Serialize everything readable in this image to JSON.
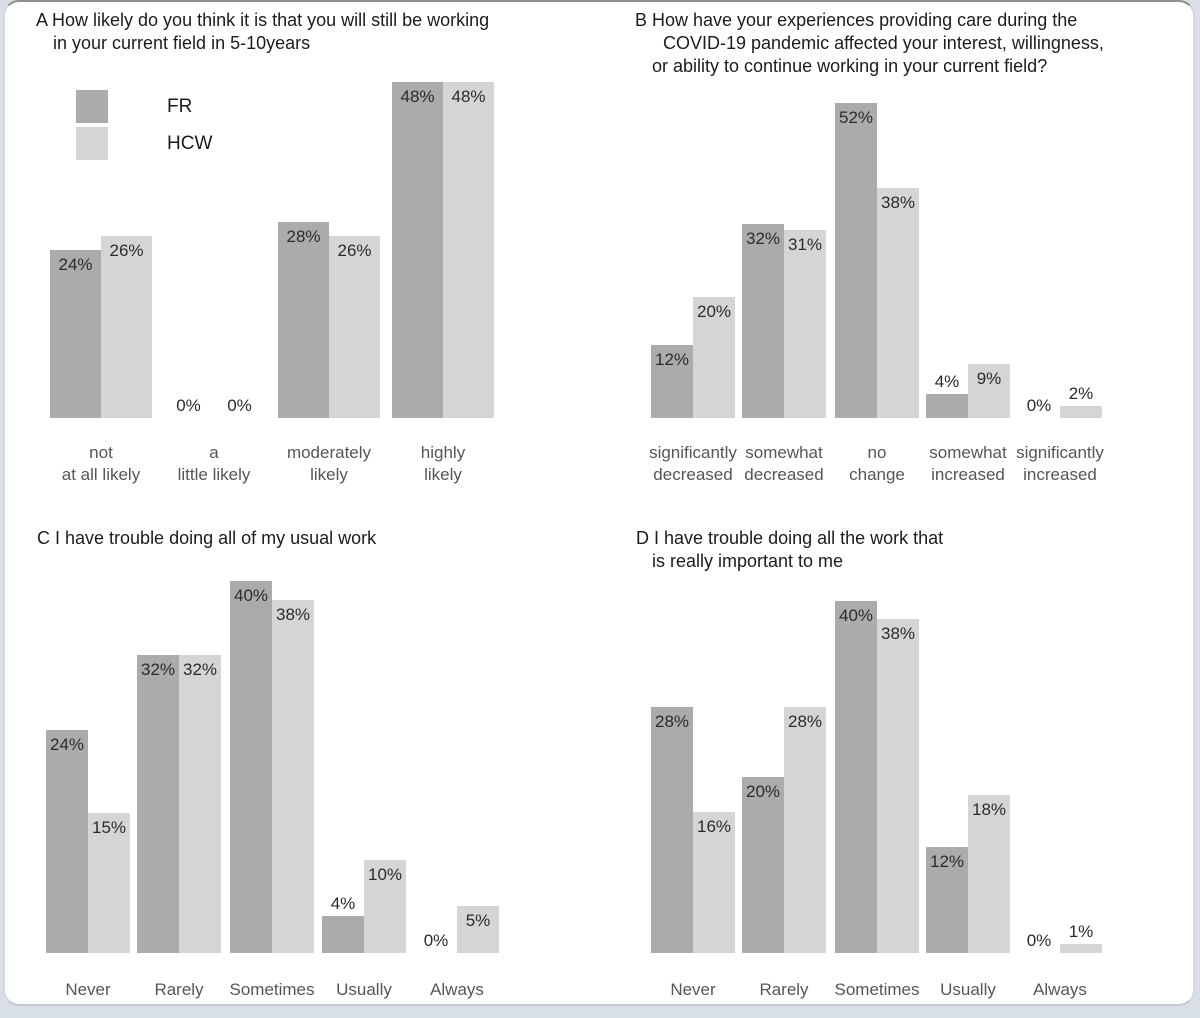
{
  "page": {
    "background_color": "#d9dfe7",
    "card_background_color": "#ffffff"
  },
  "legend": {
    "items": [
      {
        "label": "FR",
        "color": "#ababab"
      },
      {
        "label": "HCW",
        "color": "#d5d5d5"
      }
    ],
    "location": "inside panel A, top-left"
  },
  "text_colors": {
    "title": "#1c1c1c",
    "value_label": "#2b2b2b",
    "category_label": "#565656"
  },
  "chart_data": [
    {
      "panel": "A",
      "type": "bar",
      "unit": "%",
      "grid": false,
      "ylim": [
        0,
        50
      ],
      "title": "How likely do you think it is that you will still be working in your current field in 5-10years",
      "title_lines": [
        "A  How likely do you think it is that you will still be working",
        "in your current field in 5-10years"
      ],
      "categories": [
        "not at all likely",
        "a little likely",
        "moderately likely",
        "highly likely"
      ],
      "category_lines": [
        [
          "not",
          "at all likely"
        ],
        [
          "a",
          "little likely"
        ],
        [
          "moderately",
          "likely"
        ],
        [
          "highly",
          "likely"
        ]
      ],
      "series": [
        {
          "name": "FR",
          "values": [
            24,
            0,
            28,
            48
          ],
          "labels": [
            "24%",
            "0%",
            "28%",
            "48%"
          ]
        },
        {
          "name": "HCW",
          "values": [
            26,
            0,
            26,
            48
          ],
          "labels": [
            "26%",
            "0%",
            "26%",
            "48%"
          ]
        }
      ]
    },
    {
      "panel": "B",
      "type": "bar",
      "unit": "%",
      "grid": false,
      "ylim": [
        0,
        55
      ],
      "title": "How have your experiences providing care during the COVID-19 pandemic affected your interest, willingness, or ability to continue working in your current field?",
      "title_lines": [
        "B  How have your experiences providing care during the",
        "COVID-19 pandemic affected your interest, willingness,",
        "or ability to continue working in your current field?"
      ],
      "categories": [
        "significantly decreased",
        "somewhat decreased",
        "no change",
        "somewhat increased",
        "significantly increased"
      ],
      "category_lines": [
        [
          "significantly",
          "decreased"
        ],
        [
          "somewhat",
          "decreased"
        ],
        [
          "no",
          "change"
        ],
        [
          "somewhat",
          "increased"
        ],
        [
          "significantly",
          "increased"
        ]
      ],
      "series": [
        {
          "name": "FR",
          "values": [
            12,
            32,
            52,
            4,
            0
          ],
          "labels": [
            "12%",
            "32%",
            "52%",
            "4%",
            "0%"
          ]
        },
        {
          "name": "HCW",
          "values": [
            20,
            31,
            38,
            9,
            2
          ],
          "labels": [
            "20%",
            "31%",
            "38%",
            "9%",
            "2%"
          ]
        }
      ]
    },
    {
      "panel": "C",
      "type": "bar",
      "unit": "%",
      "grid": false,
      "ylim": [
        0,
        45
      ],
      "title": "I have trouble doing all of my usual work",
      "title_lines": [
        "C  I have trouble doing all of my usual work"
      ],
      "categories": [
        "Never",
        "Rarely",
        "Sometimes",
        "Usually",
        "Always"
      ],
      "category_lines": [
        [
          "Never"
        ],
        [
          "Rarely"
        ],
        [
          "Sometimes"
        ],
        [
          "Usually"
        ],
        [
          "Always"
        ]
      ],
      "series": [
        {
          "name": "FR",
          "values": [
            24,
            32,
            40,
            4,
            0
          ],
          "labels": [
            "24%",
            "32%",
            "40%",
            "4%",
            "0%"
          ]
        },
        {
          "name": "HCW",
          "values": [
            15,
            32,
            38,
            10,
            5
          ],
          "labels": [
            "15%",
            "32%",
            "38%",
            "10%",
            "5%"
          ]
        }
      ]
    },
    {
      "panel": "D",
      "type": "bar",
      "unit": "%",
      "grid": false,
      "ylim": [
        0,
        45
      ],
      "title": "I have trouble doing all the work that is really important to me",
      "title_lines": [
        "D  I have trouble doing all the work that",
        "is really important to me"
      ],
      "categories": [
        "Never",
        "Rarely",
        "Sometimes",
        "Usually",
        "Always"
      ],
      "category_lines": [
        [
          "Never"
        ],
        [
          "Rarely"
        ],
        [
          "Sometimes"
        ],
        [
          "Usually"
        ],
        [
          "Always"
        ]
      ],
      "series": [
        {
          "name": "FR",
          "values": [
            28,
            20,
            40,
            12,
            0
          ],
          "labels": [
            "28%",
            "20%",
            "40%",
            "12%",
            "0%"
          ]
        },
        {
          "name": "HCW",
          "values": [
            16,
            28,
            38,
            18,
            1
          ],
          "labels": [
            "16%",
            "28%",
            "38%",
            "18%",
            "1%"
          ]
        }
      ]
    }
  ]
}
